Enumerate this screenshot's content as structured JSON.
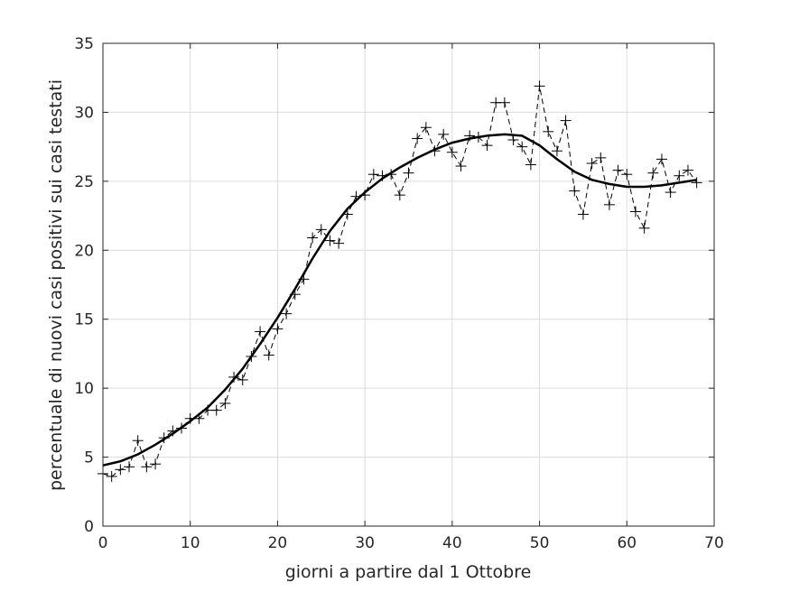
{
  "chart_data": {
    "type": "line",
    "title": "",
    "xlabel": "giorni a partire dal 1 Ottobre",
    "ylabel": "percentuale di nuovi casi positivi sui casi testati",
    "xlim": [
      0,
      70
    ],
    "ylim": [
      0,
      35
    ],
    "xticks": [
      0,
      10,
      20,
      30,
      40,
      50,
      60,
      70
    ],
    "yticks": [
      0,
      5,
      10,
      15,
      20,
      25,
      30,
      35
    ],
    "grid": true,
    "series": [
      {
        "style": "dashed line with plus markers",
        "color": "#000000",
        "x": [
          0,
          1,
          2,
          3,
          4,
          5,
          6,
          7,
          8,
          9,
          10,
          11,
          12,
          13,
          14,
          15,
          16,
          17,
          18,
          19,
          20,
          21,
          22,
          23,
          24,
          25,
          26,
          27,
          28,
          29,
          30,
          31,
          32,
          33,
          34,
          35,
          36,
          37,
          38,
          39,
          40,
          41,
          42,
          43,
          44,
          45,
          46,
          47,
          48,
          49,
          50,
          51,
          52,
          53,
          54,
          55,
          56,
          57,
          58,
          59,
          60,
          61,
          62,
          63,
          64,
          65,
          66,
          67,
          68
        ],
        "values": [
          3.8,
          3.6,
          4.1,
          4.3,
          6.2,
          4.3,
          4.5,
          6.4,
          6.9,
          7.1,
          7.8,
          7.8,
          8.4,
          8.4,
          8.9,
          10.8,
          10.6,
          12.3,
          14.1,
          12.4,
          14.3,
          15.4,
          16.8,
          17.9,
          20.9,
          21.5,
          20.7,
          20.5,
          22.6,
          23.9,
          24.0,
          25.5,
          25.4,
          25.5,
          24.0,
          25.6,
          28.1,
          28.9,
          27.2,
          28.4,
          27.1,
          26.1,
          28.3,
          28.2,
          27.6,
          30.7,
          30.7,
          28.0,
          27.5,
          26.2,
          31.9,
          28.6,
          27.2,
          29.4,
          24.3,
          22.6,
          26.3,
          26.7,
          23.3,
          25.8,
          25.5,
          22.8,
          21.6,
          25.6,
          26.6,
          24.2,
          25.4,
          25.8,
          24.9
        ]
      },
      {
        "style": "solid thick line",
        "color": "#000000",
        "x": [
          0,
          2,
          4,
          6,
          8,
          10,
          12,
          14,
          16,
          18,
          20,
          22,
          24,
          26,
          28,
          30,
          32,
          34,
          36,
          38,
          40,
          42,
          44,
          46,
          48,
          50,
          52,
          54,
          56,
          58,
          60,
          62,
          64,
          66,
          68
        ],
        "values": [
          4.4,
          4.7,
          5.2,
          5.9,
          6.7,
          7.6,
          8.6,
          9.9,
          11.4,
          13.2,
          15.1,
          17.2,
          19.4,
          21.4,
          23.0,
          24.2,
          25.2,
          26.0,
          26.7,
          27.3,
          27.8,
          28.1,
          28.3,
          28.4,
          28.3,
          27.6,
          26.6,
          25.7,
          25.1,
          24.8,
          24.6,
          24.6,
          24.7,
          24.9,
          25.1
        ]
      }
    ]
  }
}
